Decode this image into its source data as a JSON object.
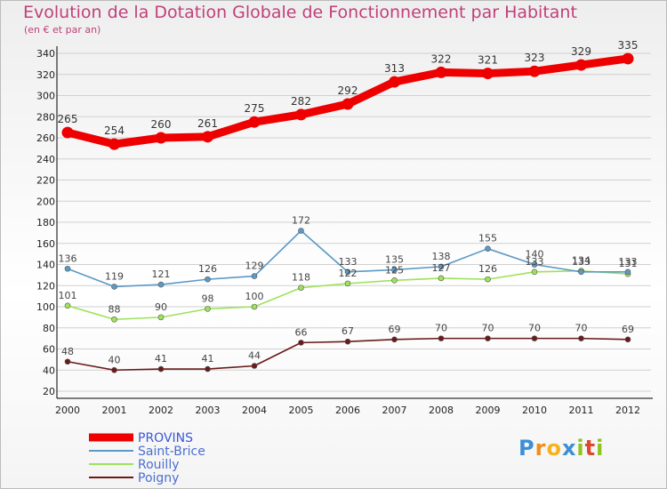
{
  "title": "Evolution de la Dotation Globale de Fonctionnement par Habitant",
  "subtitle": "(en € et par an)",
  "brand": {
    "letters": [
      "P",
      "r",
      "o",
      "x",
      "i",
      "t",
      "i"
    ],
    "colors": [
      "#3c8fd6",
      "#f28c1a",
      "#f6b21e",
      "#3c8fd6",
      "#8fc31f",
      "#e1472e",
      "#8fc31f"
    ]
  },
  "colors": {
    "title": "#c0407a",
    "axis": "#000000",
    "grid": "#d0d0d0"
  },
  "chart_data": {
    "type": "line",
    "categories": [
      "2000",
      "2001",
      "2002",
      "2003",
      "2004",
      "2005",
      "2006",
      "2007",
      "2008",
      "2009",
      "2010",
      "2011",
      "2012"
    ],
    "ylim": [
      20,
      340
    ],
    "yticks": [
      20,
      40,
      60,
      80,
      100,
      120,
      140,
      160,
      180,
      200,
      220,
      240,
      260,
      280,
      300,
      320,
      340
    ],
    "grid": "horizontal",
    "legend_position": "bottom-left",
    "series": [
      {
        "name": "PROVINS",
        "color": "#ee0000",
        "values": [
          265,
          254,
          260,
          261,
          275,
          282,
          292,
          313,
          322,
          321,
          323,
          329,
          335
        ]
      },
      {
        "name": "Saint-Brice",
        "color": "#5b9ac6",
        "values": [
          136,
          119,
          121,
          126,
          129,
          172,
          133,
          135,
          138,
          155,
          140,
          133,
          133
        ]
      },
      {
        "name": "Rouilly",
        "color": "#9ee25a",
        "values": [
          101,
          88,
          90,
          98,
          100,
          118,
          122,
          125,
          127,
          126,
          133,
          134,
          131
        ]
      },
      {
        "name": "Poigny",
        "color": "#6a1a1a",
        "values": [
          48,
          40,
          41,
          41,
          44,
          66,
          67,
          69,
          70,
          70,
          70,
          70,
          69
        ]
      }
    ]
  }
}
